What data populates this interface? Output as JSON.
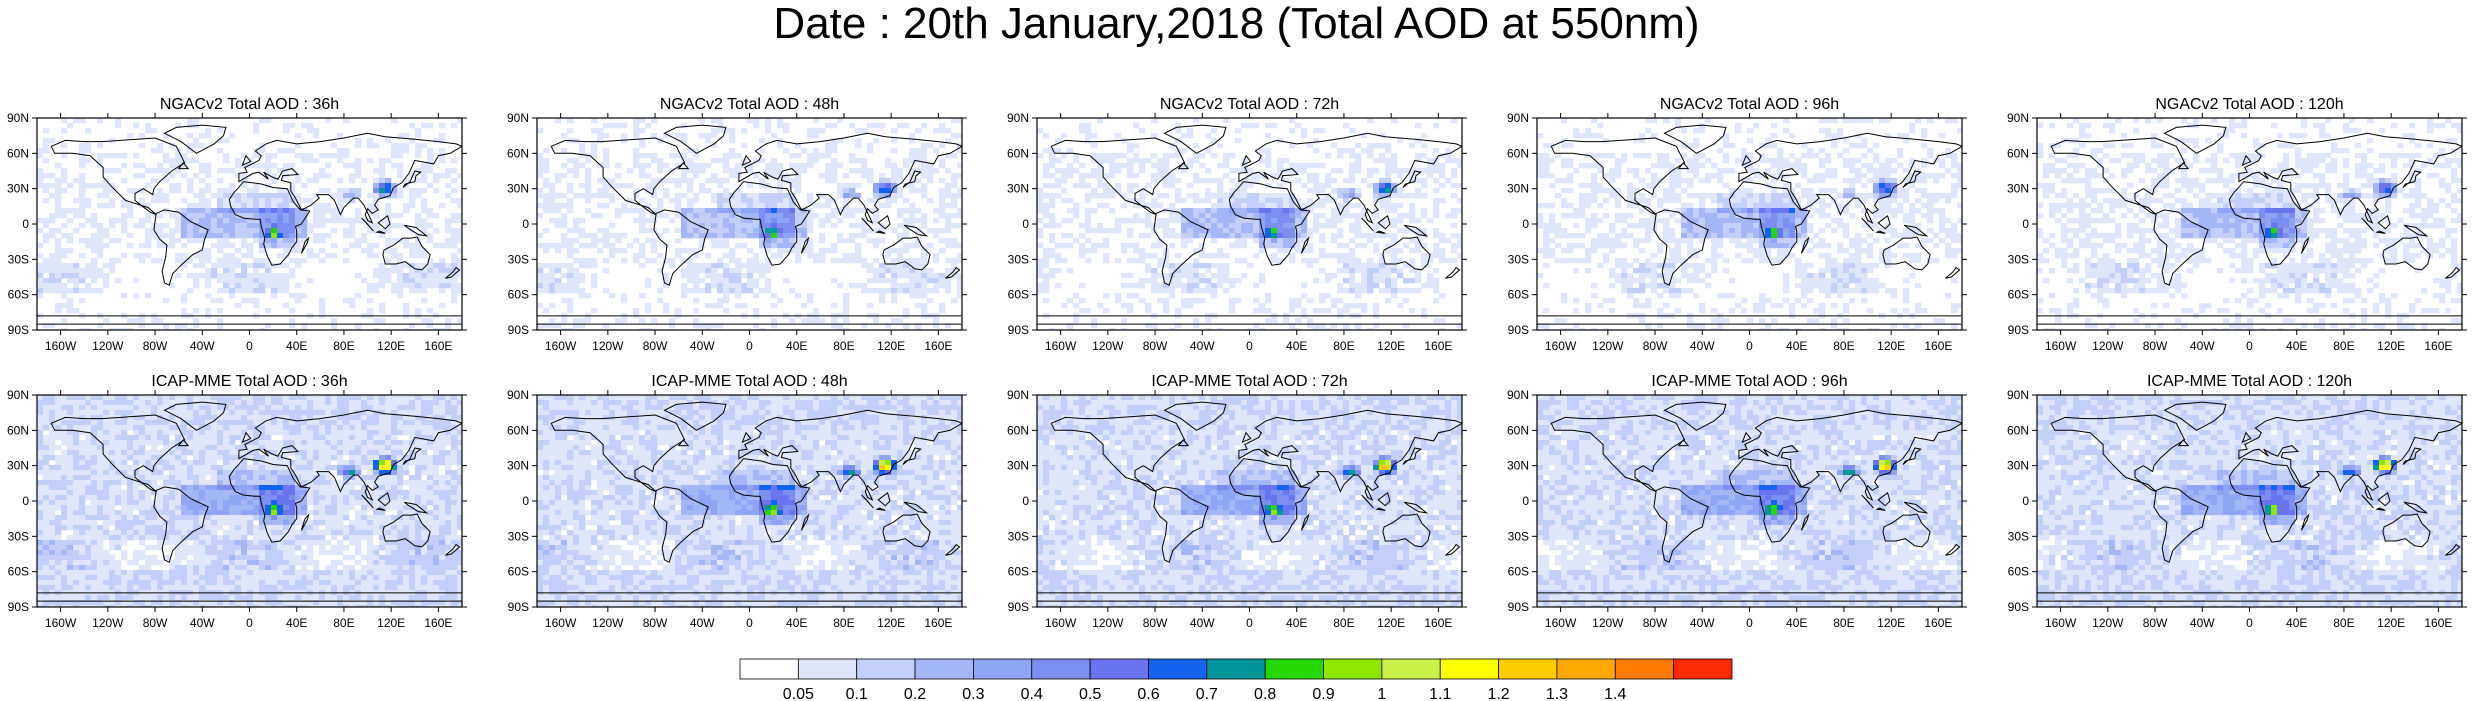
{
  "title": "Date : 20th January,2018 (Total AOD at 550nm)",
  "rows": [
    {
      "model": "NGACv2",
      "panels": [
        {
          "title": "NGACv2 Total AOD : 36h",
          "hours": 36
        },
        {
          "title": "NGACv2 Total AOD : 48h",
          "hours": 48
        },
        {
          "title": "NGACv2 Total AOD : 72h",
          "hours": 72
        },
        {
          "title": "NGACv2 Total AOD : 96h",
          "hours": 96
        },
        {
          "title": "NGACv2 Total AOD : 120h",
          "hours": 120
        }
      ]
    },
    {
      "model": "ICAP-MME",
      "panels": [
        {
          "title": "ICAP-MME Total AOD : 36h",
          "hours": 36
        },
        {
          "title": "ICAP-MME Total AOD : 48h",
          "hours": 48
        },
        {
          "title": "ICAP-MME Total AOD : 72h",
          "hours": 72
        },
        {
          "title": "ICAP-MME Total AOD : 96h",
          "hours": 96
        },
        {
          "title": "ICAP-MME Total AOD : 120h",
          "hours": 120
        }
      ]
    }
  ],
  "lat_ticks": [
    "90N",
    "60N",
    "30N",
    "0",
    "30S",
    "60S",
    "90S"
  ],
  "lon_ticks": [
    "160W",
    "120W",
    "80W",
    "40W",
    "0",
    "40E",
    "80E",
    "120E",
    "160E"
  ],
  "colorbar": {
    "colors": [
      "#ffffff",
      "#dfe6fb",
      "#c2d0f9",
      "#a3b7f7",
      "#8ea4f5",
      "#7c8ff1",
      "#6b74ef",
      "#1463ee",
      "#00969a",
      "#23d800",
      "#8fe600",
      "#c8f24a",
      "#ffff00",
      "#ffcc00",
      "#ffa800",
      "#ff7c00",
      "#ff2a00"
    ],
    "labels": [
      "0.05",
      "0.1",
      "0.2",
      "0.3",
      "0.4",
      "0.5",
      "0.6",
      "0.7",
      "0.8",
      "0.9",
      "1",
      "1.1",
      "1.2",
      "1.3",
      "1.4"
    ]
  }
}
